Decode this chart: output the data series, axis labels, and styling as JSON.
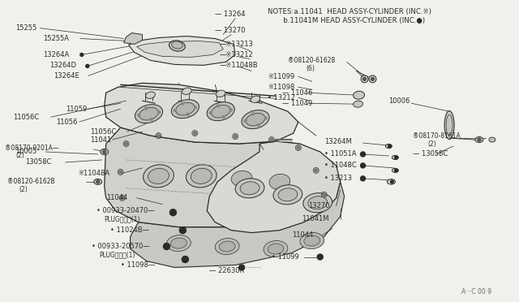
{
  "bg_color": "#f0f0ec",
  "line_color": "#2a2a2a",
  "text_color": "#2a2a2a",
  "notes_line1": "NOTES:a.11041  HEAD ASSY-CYLINDER (INC.※)",
  "notes_line2": "       b.11041M HEAD ASSY-CYLINDER (INC.●)",
  "watermark": "A···C 00·9",
  "figsize": [
    6.4,
    3.72
  ],
  "dpi": 100
}
